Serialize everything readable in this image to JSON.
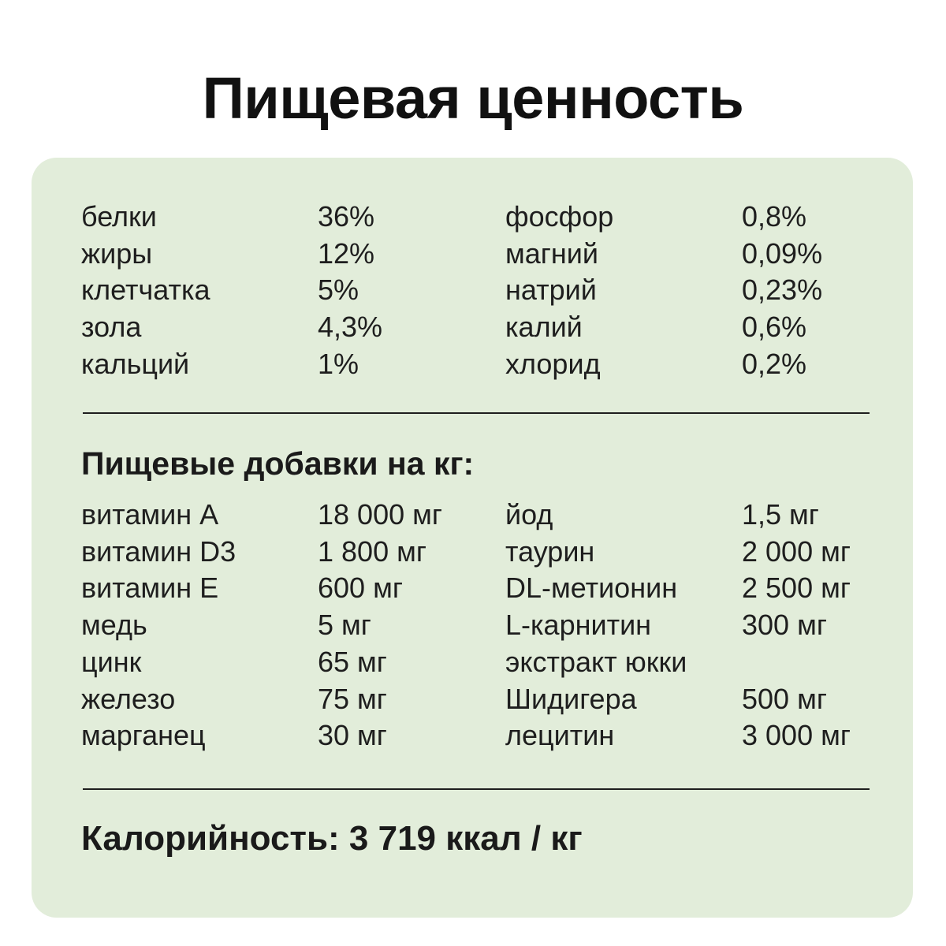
{
  "title": "Пищевая ценность",
  "composition": {
    "left": [
      {
        "name": "белки",
        "value": "36%"
      },
      {
        "name": "жиры",
        "value": "12%"
      },
      {
        "name": "клетчатка",
        "value": "5%"
      },
      {
        "name": "зола",
        "value": "4,3%"
      },
      {
        "name": "кальций",
        "value": "1%"
      }
    ],
    "right": [
      {
        "name": "фосфор",
        "value": "0,8%"
      },
      {
        "name": "магний",
        "value": "0,09%"
      },
      {
        "name": "натрий",
        "value": "0,23%"
      },
      {
        "name": "калий",
        "value": "0,6%"
      },
      {
        "name": "хлорид",
        "value": "0,2%"
      }
    ]
  },
  "additives": {
    "heading": "Пищевые добавки на кг:",
    "left": [
      {
        "name": "витамин А",
        "value": "18 000 мг"
      },
      {
        "name": "витамин D3",
        "value": "1 800 мг"
      },
      {
        "name": "витамин Е",
        "value": "600 мг"
      },
      {
        "name": "медь",
        "value": "5 мг"
      },
      {
        "name": "цинк",
        "value": "65 мг"
      },
      {
        "name": "железо",
        "value": "75 мг"
      },
      {
        "name": "марганец",
        "value": "30 мг"
      }
    ],
    "right": [
      {
        "name": "йод",
        "value": "1,5 мг"
      },
      {
        "name": "таурин",
        "value": "2 000 мг"
      },
      {
        "name": "DL-метионин",
        "value": "2 500 мг"
      },
      {
        "name": "L-карнитин",
        "value": "300 мг"
      },
      {
        "name": "экстракт юкки",
        "value": ""
      },
      {
        "name": "Шидигера",
        "value": "500 мг"
      },
      {
        "name": "лецитин",
        "value": "3 000 мг"
      }
    ]
  },
  "calories": "Калорийность: 3 719 ккал / кг"
}
